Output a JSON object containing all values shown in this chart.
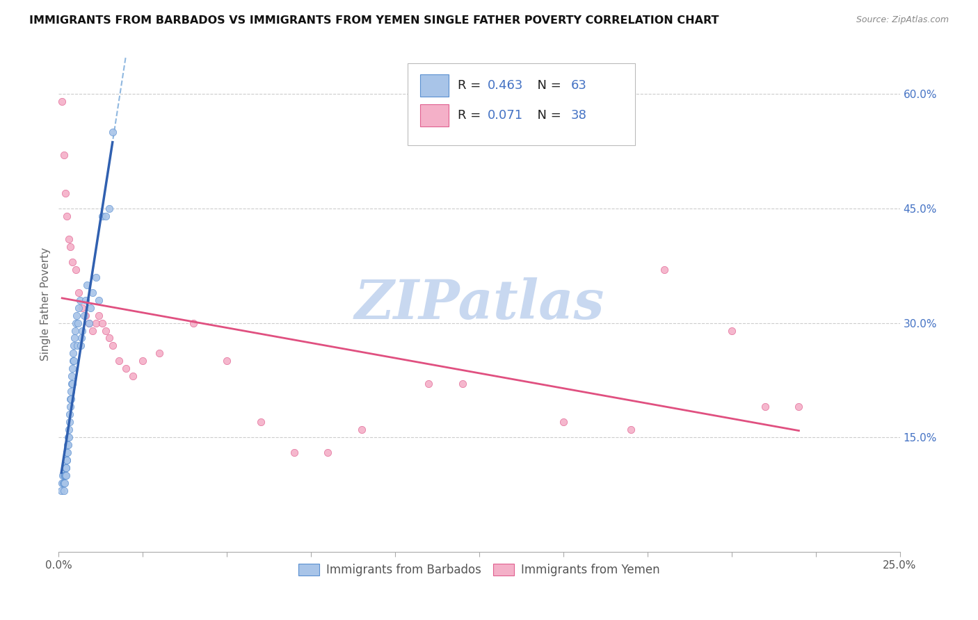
{
  "title": "IMMIGRANTS FROM BARBADOS VS IMMIGRANTS FROM YEMEN SINGLE FATHER POVERTY CORRELATION CHART",
  "source": "Source: ZipAtlas.com",
  "ylabel": "Single Father Poverty",
  "xlim": [
    0.0,
    0.25
  ],
  "ylim": [
    0.0,
    0.65
  ],
  "xtick_positions": [
    0.0,
    0.025,
    0.05,
    0.075,
    0.1,
    0.125,
    0.15,
    0.175,
    0.2,
    0.225,
    0.25
  ],
  "yticks_right": [
    0.15,
    0.3,
    0.45,
    0.6
  ],
  "ytick_right_labels": [
    "15.0%",
    "30.0%",
    "45.0%",
    "60.0%"
  ],
  "R_barbados": 0.463,
  "N_barbados": 63,
  "R_yemen": 0.071,
  "N_yemen": 38,
  "color_barbados": "#a8c4e8",
  "color_yemen": "#f4b0c8",
  "edge_barbados": "#5a8fd0",
  "edge_yemen": "#e06090",
  "trendline_barbados_color": "#3060b0",
  "trendline_yemen_color": "#e05080",
  "legend_text_color": "#222222",
  "legend_value_color": "#4472c4",
  "watermark": "ZIPatlas",
  "watermark_color": "#c8d8f0",
  "barbados_x": [
    0.0008,
    0.001,
    0.0012,
    0.0013,
    0.0015,
    0.0015,
    0.0016,
    0.0017,
    0.0018,
    0.0018,
    0.0019,
    0.002,
    0.002,
    0.0021,
    0.0022,
    0.0022,
    0.0023,
    0.0024,
    0.0025,
    0.0025,
    0.0026,
    0.0027,
    0.0028,
    0.0029,
    0.003,
    0.0031,
    0.0032,
    0.0033,
    0.0034,
    0.0035,
    0.0036,
    0.0037,
    0.0038,
    0.0039,
    0.004,
    0.0041,
    0.0042,
    0.0043,
    0.0044,
    0.0045,
    0.0046,
    0.0048,
    0.005,
    0.0052,
    0.0055,
    0.0058,
    0.006,
    0.0063,
    0.0065,
    0.0068,
    0.007,
    0.0075,
    0.008,
    0.0085,
    0.009,
    0.0095,
    0.01,
    0.011,
    0.012,
    0.013,
    0.014,
    0.015,
    0.016
  ],
  "barbados_y": [
    0.08,
    0.09,
    0.1,
    0.09,
    0.08,
    0.1,
    0.09,
    0.1,
    0.09,
    0.11,
    0.1,
    0.1,
    0.11,
    0.11,
    0.1,
    0.12,
    0.11,
    0.12,
    0.12,
    0.13,
    0.13,
    0.14,
    0.14,
    0.15,
    0.15,
    0.16,
    0.17,
    0.18,
    0.19,
    0.2,
    0.21,
    0.2,
    0.22,
    0.23,
    0.22,
    0.24,
    0.25,
    0.26,
    0.25,
    0.27,
    0.28,
    0.29,
    0.3,
    0.31,
    0.27,
    0.3,
    0.32,
    0.33,
    0.27,
    0.28,
    0.29,
    0.31,
    0.33,
    0.35,
    0.3,
    0.32,
    0.34,
    0.36,
    0.33,
    0.44,
    0.44,
    0.45,
    0.55
  ],
  "yemen_x": [
    0.001,
    0.0015,
    0.002,
    0.0025,
    0.003,
    0.0035,
    0.004,
    0.005,
    0.006,
    0.007,
    0.008,
    0.009,
    0.01,
    0.011,
    0.012,
    0.013,
    0.014,
    0.015,
    0.016,
    0.018,
    0.02,
    0.022,
    0.025,
    0.03,
    0.06,
    0.09,
    0.11,
    0.15,
    0.18,
    0.2,
    0.21,
    0.22,
    0.04,
    0.05,
    0.07,
    0.08,
    0.12,
    0.17
  ],
  "yemen_y": [
    0.59,
    0.52,
    0.47,
    0.44,
    0.41,
    0.4,
    0.38,
    0.37,
    0.34,
    0.32,
    0.31,
    0.3,
    0.29,
    0.3,
    0.31,
    0.3,
    0.29,
    0.28,
    0.27,
    0.25,
    0.24,
    0.23,
    0.25,
    0.26,
    0.17,
    0.16,
    0.22,
    0.17,
    0.37,
    0.29,
    0.19,
    0.19,
    0.3,
    0.25,
    0.13,
    0.13,
    0.22,
    0.16
  ]
}
